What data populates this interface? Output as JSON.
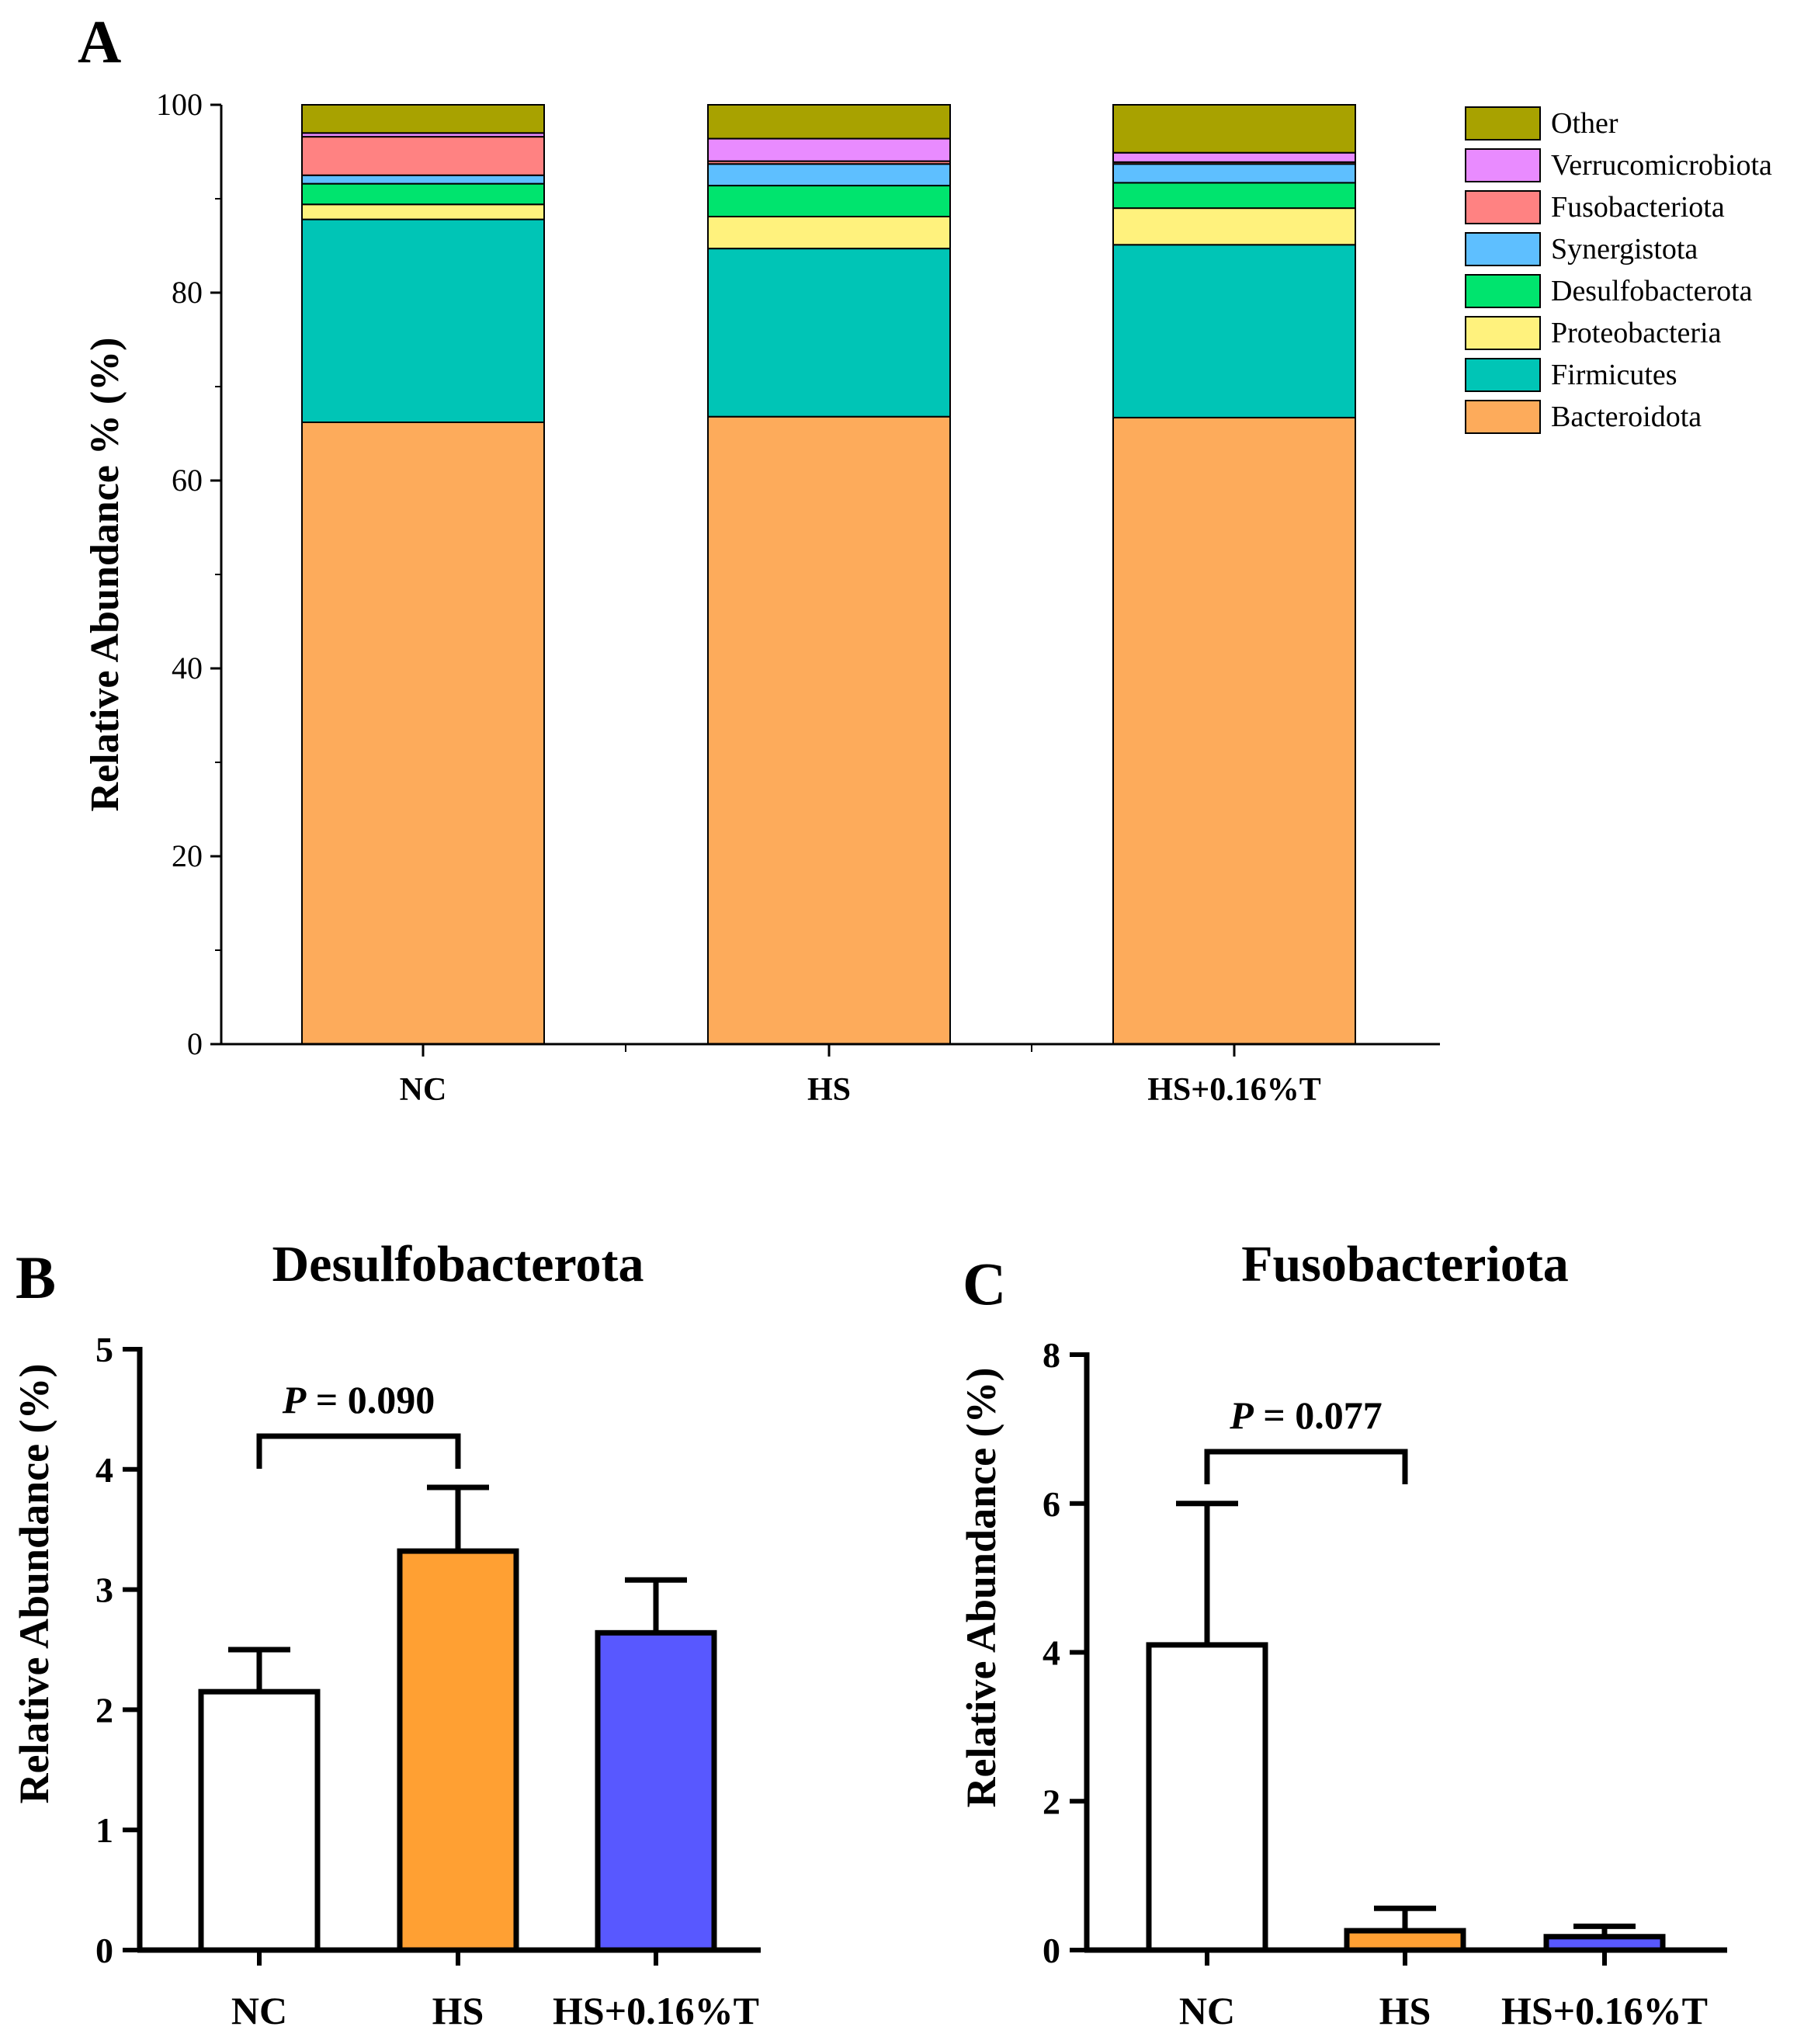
{
  "chart_data": [
    {
      "panel": "A",
      "type": "bar",
      "stacked": true,
      "categories": [
        "NC",
        "HS",
        "HS+0.16%T"
      ],
      "ylabel": "Relative Abundance % (%)",
      "ylim": [
        0,
        100
      ],
      "yticks": [
        0,
        20,
        40,
        60,
        80,
        100
      ],
      "series": [
        {
          "name": "Bacteroidota",
          "color": "#FDAB5B",
          "values": [
            66.2,
            66.8,
            66.7
          ]
        },
        {
          "name": "Firmicutes",
          "color": "#00C5B6",
          "values": [
            21.6,
            17.9,
            18.4
          ]
        },
        {
          "name": "Proteobacteria",
          "color": "#FFF27D",
          "values": [
            1.6,
            3.4,
            3.9
          ]
        },
        {
          "name": "Desulfobacterota",
          "color": "#00E46E",
          "values": [
            2.2,
            3.3,
            2.7
          ]
        },
        {
          "name": "Synergistota",
          "color": "#5EBFFF",
          "values": [
            0.9,
            2.3,
            2.0
          ]
        },
        {
          "name": "Fusobacteriota",
          "color": "#FF8282",
          "values": [
            4.1,
            0.3,
            0.2
          ]
        },
        {
          "name": "Verrucomicrobiota",
          "color": "#E98BFF",
          "values": [
            0.4,
            2.4,
            1.0
          ]
        },
        {
          "name": "Other",
          "color": "#A8A200",
          "values": [
            3.0,
            3.6,
            5.1
          ]
        }
      ],
      "legend": [
        "Other",
        "Verrucomicrobiota",
        "Fusobacteriota",
        "Synergistota",
        "Desulfobacterota",
        "Proteobacteria",
        "Firmicutes",
        "Bacteroidota"
      ]
    },
    {
      "panel": "B",
      "type": "bar",
      "title": "Desulfobacterota",
      "categories": [
        "NC",
        "HS",
        "HS+0.16%T"
      ],
      "values": [
        2.15,
        3.32,
        2.64
      ],
      "errors": [
        0.35,
        0.53,
        0.44
      ],
      "colors": [
        "#FFFFFF",
        "#FFA033",
        "#5858FF"
      ],
      "ylabel": "Relative Abundance (%)",
      "ylim": [
        0,
        5
      ],
      "yticks": [
        0,
        1,
        2,
        3,
        4,
        5
      ],
      "annotation": {
        "p_symbol": "P",
        "p_text": " = 0.090",
        "between": [
          0,
          1
        ]
      }
    },
    {
      "panel": "C",
      "type": "bar",
      "title": "Fusobacteriota",
      "categories": [
        "NC",
        "HS",
        "HS+0.16%T"
      ],
      "values": [
        4.1,
        0.26,
        0.18
      ],
      "errors": [
        1.9,
        0.3,
        0.14
      ],
      "colors": [
        "#FFFFFF",
        "#FFA033",
        "#5858FF"
      ],
      "ylabel": "Relative Abundance (%)",
      "ylim": [
        0,
        8
      ],
      "yticks": [
        0,
        2,
        4,
        6,
        8
      ],
      "annotation": {
        "p_symbol": "P",
        "p_text": " = 0.077",
        "between": [
          0,
          1
        ]
      }
    }
  ]
}
